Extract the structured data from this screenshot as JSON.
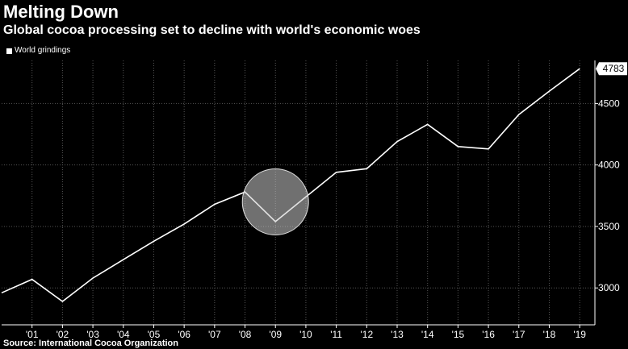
{
  "header": {
    "title": "Melting Down",
    "subtitle": "Global cocoa processing set to decline with world's economic woes"
  },
  "legend": {
    "label": "World grindings"
  },
  "source": "Source: International Cocoa Organization",
  "colors": {
    "background": "#000000",
    "line": "#ffffff",
    "grid": "#555555",
    "highlight": "#cccccc"
  },
  "chart_data": {
    "type": "line",
    "title": "Melting Down",
    "subtitle": "Global cocoa processing set to decline with world's economic woes",
    "xlabel": "",
    "ylabel": "",
    "x_tick_labels": [
      "'01",
      "'02",
      "'03",
      "'04",
      "'05",
      "'06",
      "'07",
      "'08",
      "'09",
      "'10",
      "'11",
      "'12",
      "'13",
      "'14",
      "'15",
      "'16",
      "'17",
      "'18",
      "'19"
    ],
    "y_ticks": [
      3000,
      3500,
      4000,
      4500
    ],
    "ylim": [
      2700,
      4850
    ],
    "xlim": [
      2000,
      2019.5
    ],
    "grid": true,
    "legend_position": "top-left",
    "series": [
      {
        "name": "World grindings",
        "x": [
          2000,
          2001,
          2002,
          2003,
          2004,
          2005,
          2006,
          2007,
          2008,
          2009,
          2010,
          2011,
          2012,
          2013,
          2014,
          2015,
          2016,
          2017,
          2018,
          2019
        ],
        "values": [
          2960,
          3070,
          2890,
          3080,
          3230,
          3380,
          3520,
          3680,
          3780,
          3540,
          3740,
          3940,
          3970,
          4190,
          4330,
          4150,
          4130,
          4410,
          4600,
          4783
        ]
      }
    ],
    "last_value_label": "4783",
    "highlight": {
      "x": 2009,
      "y": 3700
    }
  }
}
